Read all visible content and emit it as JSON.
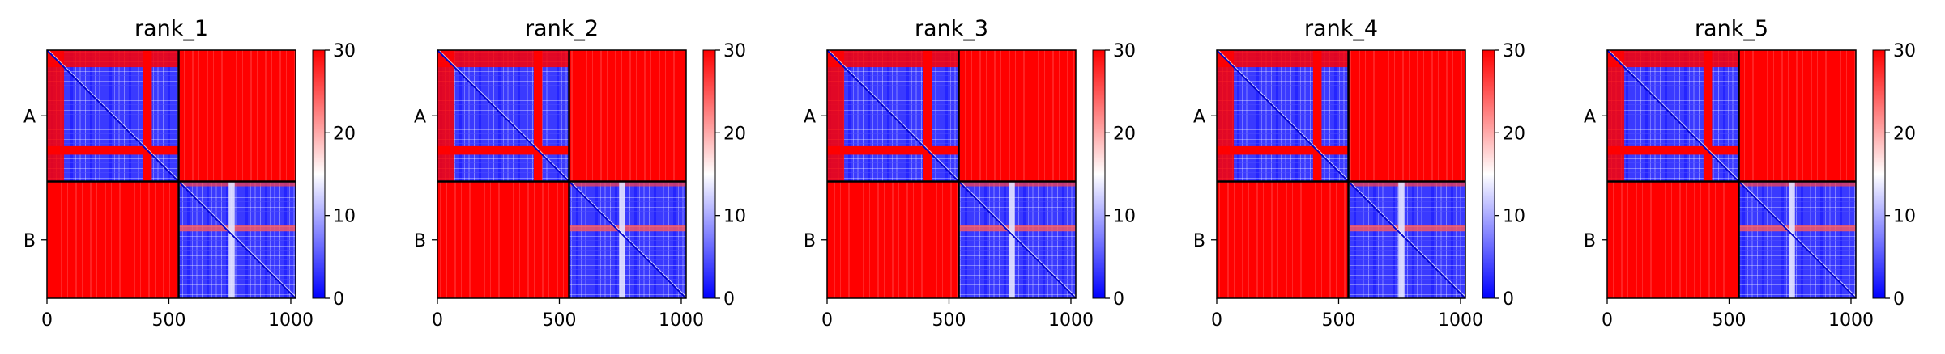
{
  "figure": {
    "panel_titles": [
      "rank_1",
      "rank_2",
      "rank_3",
      "rank_4",
      "rank_5"
    ]
  },
  "chart_data": [
    {
      "type": "heatmap",
      "title": "rank_1",
      "chains": [
        "A",
        "B"
      ],
      "chain_boundary": 540,
      "x_ticks": [
        0,
        500,
        1000
      ],
      "xlim": [
        0,
        1020
      ],
      "colorbar": {
        "ticks": [
          0,
          10,
          20,
          30
        ],
        "range": [
          0,
          30
        ],
        "colors": [
          "#0000ff",
          "#ffffff",
          "#ff0000"
        ]
      },
      "gap_band_A": [
        395,
        430
      ],
      "gap_band_B": [
        720,
        745
      ],
      "lowconf_stripe": [
        745,
        770
      ]
    },
    {
      "type": "heatmap",
      "title": "rank_2",
      "chains": [
        "A",
        "B"
      ],
      "chain_boundary": 540,
      "x_ticks": [
        0,
        500,
        1000
      ],
      "xlim": [
        0,
        1020
      ],
      "colorbar": {
        "ticks": [
          0,
          10,
          20,
          30
        ],
        "range": [
          0,
          30
        ],
        "colors": [
          "#0000ff",
          "#ffffff",
          "#ff0000"
        ]
      },
      "gap_band_A": [
        395,
        430
      ],
      "gap_band_B": [
        720,
        745
      ],
      "lowconf_stripe": [
        745,
        770
      ]
    },
    {
      "type": "heatmap",
      "title": "rank_3",
      "chains": [
        "A",
        "B"
      ],
      "chain_boundary": 540,
      "x_ticks": [
        0,
        500,
        1000
      ],
      "xlim": [
        0,
        1020
      ],
      "colorbar": {
        "ticks": [
          0,
          10,
          20,
          30
        ],
        "range": [
          0,
          30
        ],
        "colors": [
          "#0000ff",
          "#ffffff",
          "#ff0000"
        ]
      },
      "gap_band_A": [
        395,
        430
      ],
      "gap_band_B": [
        720,
        745
      ],
      "lowconf_stripe": [
        745,
        770
      ]
    },
    {
      "type": "heatmap",
      "title": "rank_4",
      "chains": [
        "A",
        "B"
      ],
      "chain_boundary": 540,
      "x_ticks": [
        0,
        500,
        1000
      ],
      "xlim": [
        0,
        1020
      ],
      "colorbar": {
        "ticks": [
          0,
          10,
          20,
          30
        ],
        "range": [
          0,
          30
        ],
        "colors": [
          "#0000ff",
          "#ffffff",
          "#ff0000"
        ]
      },
      "gap_band_A": [
        395,
        430
      ],
      "gap_band_B": [
        720,
        745
      ],
      "lowconf_stripe": [
        745,
        770
      ]
    },
    {
      "type": "heatmap",
      "title": "rank_5",
      "chains": [
        "A",
        "B"
      ],
      "chain_boundary": 540,
      "x_ticks": [
        0,
        500,
        1000
      ],
      "xlim": [
        0,
        1020
      ],
      "colorbar": {
        "ticks": [
          0,
          10,
          20,
          30
        ],
        "range": [
          0,
          30
        ],
        "colors": [
          "#0000ff",
          "#ffffff",
          "#ff0000"
        ]
      },
      "gap_band_A": [
        395,
        430
      ],
      "gap_band_B": [
        720,
        745
      ],
      "lowconf_stripe": [
        745,
        770
      ]
    }
  ]
}
